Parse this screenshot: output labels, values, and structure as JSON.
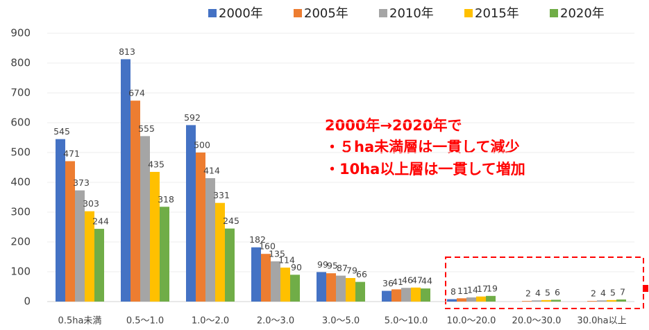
{
  "chart_data": {
    "type": "bar",
    "categories": [
      "0.5ha未満",
      "0.5～1.0",
      "1.0～2.0",
      "2.0～3.0",
      "3.0～5.0",
      "5.0～10.0",
      "10.0～20.0",
      "20.0～30.0",
      "30.0ha以上"
    ],
    "series": [
      {
        "name": "2000年",
        "color": "#4472c4",
        "values": [
          545,
          813,
          592,
          182,
          99,
          36,
          8,
          null,
          null
        ]
      },
      {
        "name": "2005年",
        "color": "#ed7d31",
        "values": [
          471,
          674,
          500,
          160,
          95,
          41,
          11,
          2,
          2
        ]
      },
      {
        "name": "2010年",
        "color": "#a5a5a5",
        "values": [
          373,
          555,
          414,
          135,
          87,
          46,
          14,
          4,
          4
        ]
      },
      {
        "name": "2015年",
        "color": "#ffc000",
        "values": [
          303,
          435,
          331,
          114,
          79,
          47,
          17,
          5,
          5
        ]
      },
      {
        "name": "2020年",
        "color": "#70ad47",
        "values": [
          244,
          318,
          245,
          90,
          66,
          44,
          19,
          6,
          7
        ]
      }
    ],
    "ylim": [
      0,
      900
    ],
    "yticks": [
      0,
      100,
      200,
      300,
      400,
      500,
      600,
      700,
      800,
      900
    ],
    "grid": true,
    "legend": "top",
    "annotations": [
      "2000年→2020年で",
      "・５ha未満層は一貫して減少",
      "・10ha以上層は一貫して増加"
    ]
  }
}
